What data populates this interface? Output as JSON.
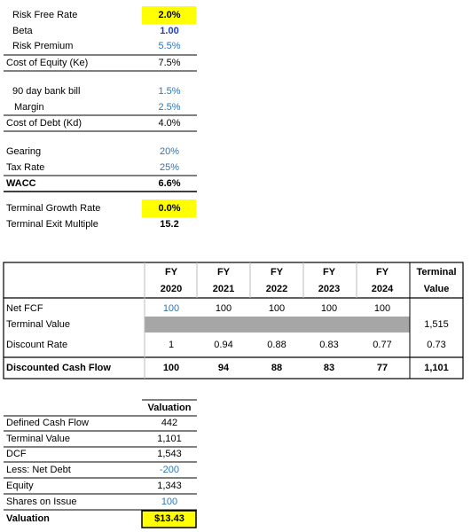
{
  "wacc": {
    "rows": [
      {
        "label": "Risk Free Rate",
        "value": "2.0%"
      },
      {
        "label": "Beta",
        "value": "1.00"
      },
      {
        "label": "Risk Premium",
        "value": "5.5%"
      },
      {
        "label": "Cost of Equity (Ke)",
        "value": "7.5%"
      },
      {
        "label": "90 day bank bill",
        "value": "1.5%"
      },
      {
        "label": "Margin",
        "value": "2.5%"
      },
      {
        "label": "Cost of Debt (Kd)",
        "value": "4.0%"
      },
      {
        "label": "Gearing",
        "value": "20%"
      },
      {
        "label": "Tax Rate",
        "value": "25%"
      },
      {
        "label": "WACC",
        "value": "6.6%"
      },
      {
        "label": "Terminal Growth Rate",
        "value": "0.0%"
      },
      {
        "label": "Terminal Exit Multiple",
        "value": "15.2"
      }
    ]
  },
  "cash_flow": {
    "headers": [
      [
        "FY",
        "2020"
      ],
      [
        "FY",
        "2021"
      ],
      [
        "FY",
        "2022"
      ],
      [
        "FY",
        "2023"
      ],
      [
        "FY",
        "2024"
      ],
      [
        "Terminal",
        "Value"
      ]
    ],
    "rows": [
      {
        "label": "Net FCF",
        "values": [
          "100",
          "100",
          "100",
          "100",
          "100"
        ]
      },
      {
        "label": "Terminal Value",
        "terminal": "1,515"
      },
      {
        "label": "Discount Rate",
        "values": [
          "1",
          "0.94",
          "0.88",
          "0.83",
          "0.77",
          "0.73"
        ]
      },
      {
        "label": "Discounted Cash Flow",
        "values": [
          "100",
          "94",
          "88",
          "83",
          "77",
          "1,101"
        ]
      }
    ]
  },
  "valuation": {
    "header": "Valuation",
    "rows": [
      {
        "label": "Defined Cash Flow",
        "value": "442"
      },
      {
        "label": "Terminal Value",
        "value": "1,101"
      },
      {
        "label": "DCF",
        "value": "1,543"
      },
      {
        "label": "Less: Net Debt",
        "value": "-200"
      },
      {
        "label": "Equity",
        "value": "1,343"
      },
      {
        "label": "Shares on Issue",
        "value": "100"
      },
      {
        "label": "Valuation",
        "value": "$13.43"
      }
    ]
  }
}
